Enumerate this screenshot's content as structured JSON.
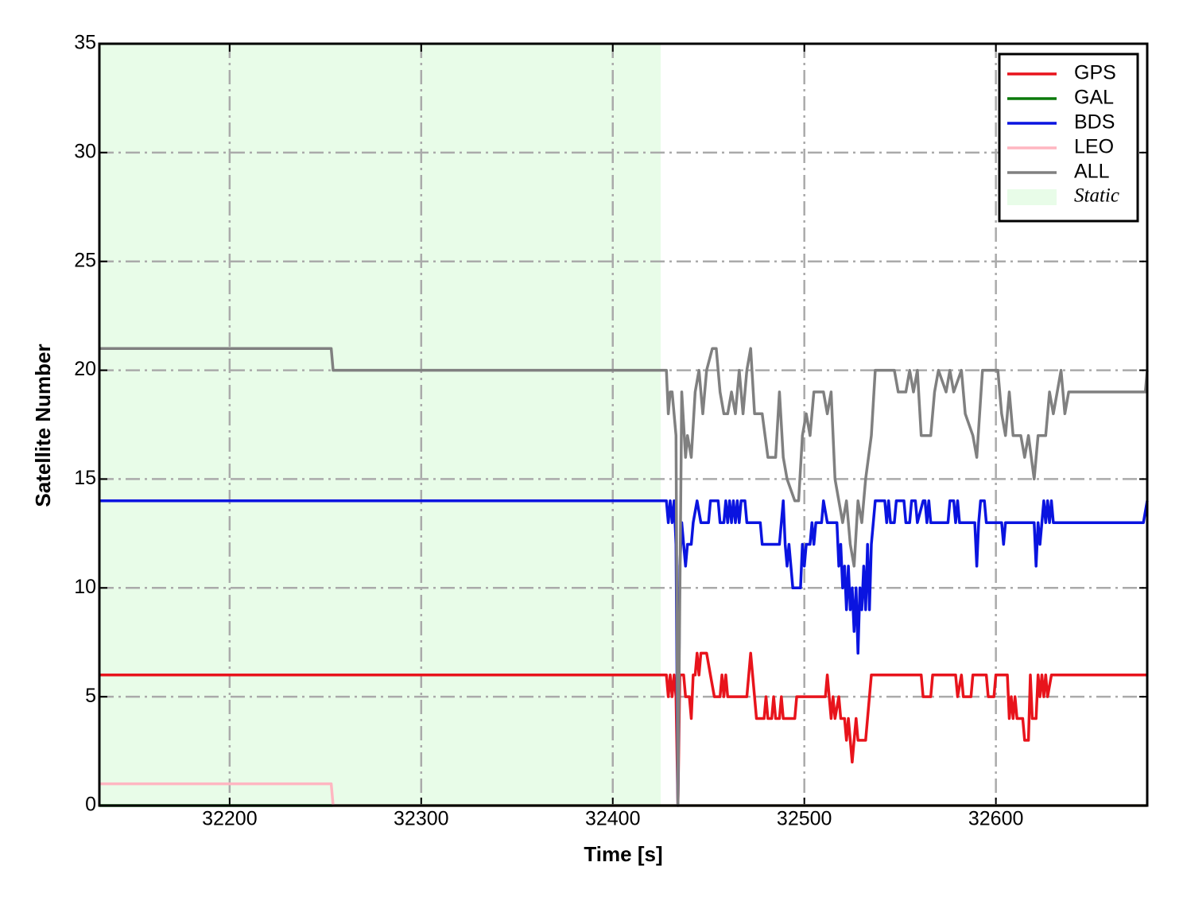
{
  "chart_data": {
    "type": "line",
    "xlabel": "Time [s]",
    "ylabel": "Satellite Number",
    "xlim": [
      32132,
      32679
    ],
    "ylim": [
      0,
      35
    ],
    "xticks": [
      32200,
      32300,
      32400,
      32500,
      32600
    ],
    "yticks": [
      0,
      5,
      10,
      15,
      20,
      25,
      30,
      35
    ],
    "grid": true,
    "legend": "upper right",
    "shade": {
      "label": "Static",
      "color": "#e8fce8",
      "xrange": [
        32132,
        32425
      ]
    },
    "series": [
      {
        "name": "GPS",
        "color": "#e8141c",
        "x": [
          32132,
          32428,
          32429,
          32430,
          32431,
          32432,
          32433,
          32434,
          32435,
          32437,
          32438,
          32440,
          32441,
          32442,
          32443,
          32444,
          32445,
          32446,
          32449,
          32451,
          32453,
          32456,
          32457,
          32458,
          32459,
          32460,
          32470,
          32472,
          32474,
          32475,
          32479,
          32480,
          32481,
          32483,
          32484,
          32485,
          32487,
          32488,
          32489,
          32495,
          32496,
          32511,
          32512,
          32513,
          32514,
          32515,
          32516,
          32518,
          32519,
          32521,
          32522,
          32523,
          32525,
          32526,
          32527,
          32528,
          32532,
          32535,
          32561,
          32562,
          32566,
          32567,
          32579,
          32580,
          32582,
          32583,
          32587,
          32588,
          32595,
          32596,
          32599,
          32600,
          32606,
          32607,
          32608,
          32609,
          32610,
          32611,
          32614,
          32615,
          32617,
          32618,
          32619,
          32621,
          32622,
          32623,
          32624,
          32625,
          32626,
          32627,
          32629,
          32679
        ],
        "values": [
          6,
          6,
          5,
          6,
          5,
          6,
          5,
          0,
          6,
          6,
          5,
          5,
          4,
          6,
          6,
          7,
          6,
          7,
          7,
          6,
          5,
          5,
          6,
          5,
          6,
          5,
          5,
          7,
          5,
          4,
          4,
          5,
          4,
          4,
          5,
          4,
          4,
          5,
          4,
          4,
          5,
          5,
          6,
          5,
          4,
          5,
          4,
          5,
          4,
          4,
          3,
          4,
          2,
          3,
          4,
          3,
          3,
          6,
          6,
          5,
          5,
          6,
          6,
          5,
          6,
          5,
          5,
          6,
          6,
          5,
          5,
          6,
          6,
          4,
          5,
          4,
          5,
          4,
          4,
          3,
          3,
          6,
          4,
          4,
          6,
          5,
          6,
          5,
          6,
          5,
          6,
          6
        ]
      },
      {
        "name": "GAL",
        "color": "#0a7a0a",
        "x": [
          32132,
          32679
        ],
        "values": [
          0,
          0
        ]
      },
      {
        "name": "BDS",
        "color": "#0a14e0",
        "x": [
          32132,
          32428,
          32429,
          32430,
          32431,
          32432,
          32433,
          32434,
          32435,
          32436,
          32437,
          32438,
          32439,
          32441,
          32442,
          32444,
          32446,
          32450,
          32451,
          32455,
          32456,
          32458,
          32459,
          32460,
          32461,
          32462,
          32463,
          32464,
          32465,
          32466,
          32467,
          32469,
          32470,
          32477,
          32478,
          32487,
          32489,
          32490,
          32491,
          32492,
          32493,
          32494,
          32498,
          32499,
          32500,
          32501,
          32503,
          32504,
          32505,
          32506,
          32509,
          32510,
          32512,
          32517,
          32518,
          32519,
          32520,
          32521,
          32522,
          32523,
          32524,
          32525,
          32526,
          32527,
          32528,
          32529,
          32530,
          32531,
          32532,
          32533,
          32534,
          32535,
          32537,
          32542,
          32543,
          32544,
          32545,
          32547,
          32548,
          32552,
          32553,
          32555,
          32556,
          32558,
          32559,
          32562,
          32563,
          32564,
          32565,
          32566,
          32575,
          32576,
          32578,
          32579,
          32580,
          32581,
          32589,
          32590,
          32591,
          32592,
          32594,
          32595,
          32603,
          32604,
          32605,
          32620,
          32621,
          32622,
          32623,
          32624,
          32625,
          32626,
          32627,
          32628,
          32629,
          32630,
          32677,
          32679
        ],
        "values": [
          14,
          14,
          13,
          14,
          13,
          14,
          12,
          0,
          11,
          13,
          12,
          11,
          12,
          12,
          13,
          14,
          13,
          13,
          14,
          14,
          13,
          13,
          14,
          13,
          14,
          13,
          14,
          13,
          14,
          13,
          14,
          14,
          13,
          13,
          12,
          12,
          14,
          12,
          11,
          12,
          11,
          10,
          10,
          12,
          11,
          12,
          12,
          13,
          12,
          13,
          13,
          14,
          13,
          13,
          11,
          12,
          10,
          11,
          9,
          11,
          9,
          10,
          8,
          10,
          7,
          10,
          9,
          11,
          9,
          12,
          9,
          12,
          14,
          14,
          13,
          14,
          13,
          13,
          14,
          14,
          13,
          13,
          14,
          14,
          13,
          14,
          14,
          13,
          14,
          13,
          13,
          14,
          14,
          13,
          14,
          13,
          13,
          11,
          13,
          14,
          14,
          13,
          13,
          12,
          13,
          13,
          11,
          13,
          12,
          13,
          14,
          13,
          14,
          13,
          14,
          13,
          13,
          14
        ]
      },
      {
        "name": "LEO",
        "color": "#ffb6c1",
        "x": [
          32132,
          32253,
          32254,
          32679
        ],
        "values": [
          1,
          1,
          0,
          0
        ]
      },
      {
        "name": "ALL",
        "color": "#808080",
        "x": [
          32132,
          32253,
          32254,
          32428,
          32429,
          32430,
          32431,
          32433,
          32434,
          32436,
          32438,
          32439,
          32441,
          32443,
          32445,
          32447,
          32449,
          32452,
          32454,
          32456,
          32458,
          32460,
          32462,
          32464,
          32466,
          32468,
          32470,
          32472,
          32474,
          32478,
          32481,
          32485,
          32487,
          32489,
          32491,
          32495,
          32497,
          32499,
          32501,
          32503,
          32505,
          32510,
          32512,
          32514,
          32516,
          32518,
          32520,
          32522,
          32524,
          32526,
          32528,
          32530,
          32532,
          32535,
          32537,
          32547,
          32549,
          32553,
          32555,
          32557,
          32559,
          32561,
          32566,
          32568,
          32570,
          32574,
          32576,
          32578,
          32582,
          32584,
          32588,
          32590,
          32593,
          32601,
          32603,
          32605,
          32607,
          32609,
          32613,
          32615,
          32617,
          32620,
          32622,
          32626,
          32628,
          32630,
          32632,
          32634,
          32636,
          32638,
          32640,
          32678,
          32679
        ],
        "values": [
          21,
          21,
          20,
          20,
          18,
          19,
          19,
          17,
          0,
          19,
          16,
          17,
          16,
          19,
          20,
          18,
          20,
          21,
          21,
          19,
          18,
          18,
          19,
          18,
          20,
          18,
          20,
          21,
          18,
          18,
          16,
          16,
          19,
          16,
          15,
          14,
          14,
          17,
          18,
          17,
          19,
          19,
          18,
          19,
          15,
          14,
          13,
          14,
          12,
          11,
          14,
          13,
          15,
          17,
          20,
          20,
          19,
          19,
          20,
          19,
          20,
          17,
          17,
          19,
          20,
          19,
          20,
          19,
          20,
          18,
          17,
          16,
          20,
          20,
          18,
          17,
          19,
          17,
          17,
          16,
          17,
          15,
          17,
          17,
          19,
          18,
          19,
          20,
          18,
          19,
          19,
          19,
          20
        ]
      }
    ]
  }
}
